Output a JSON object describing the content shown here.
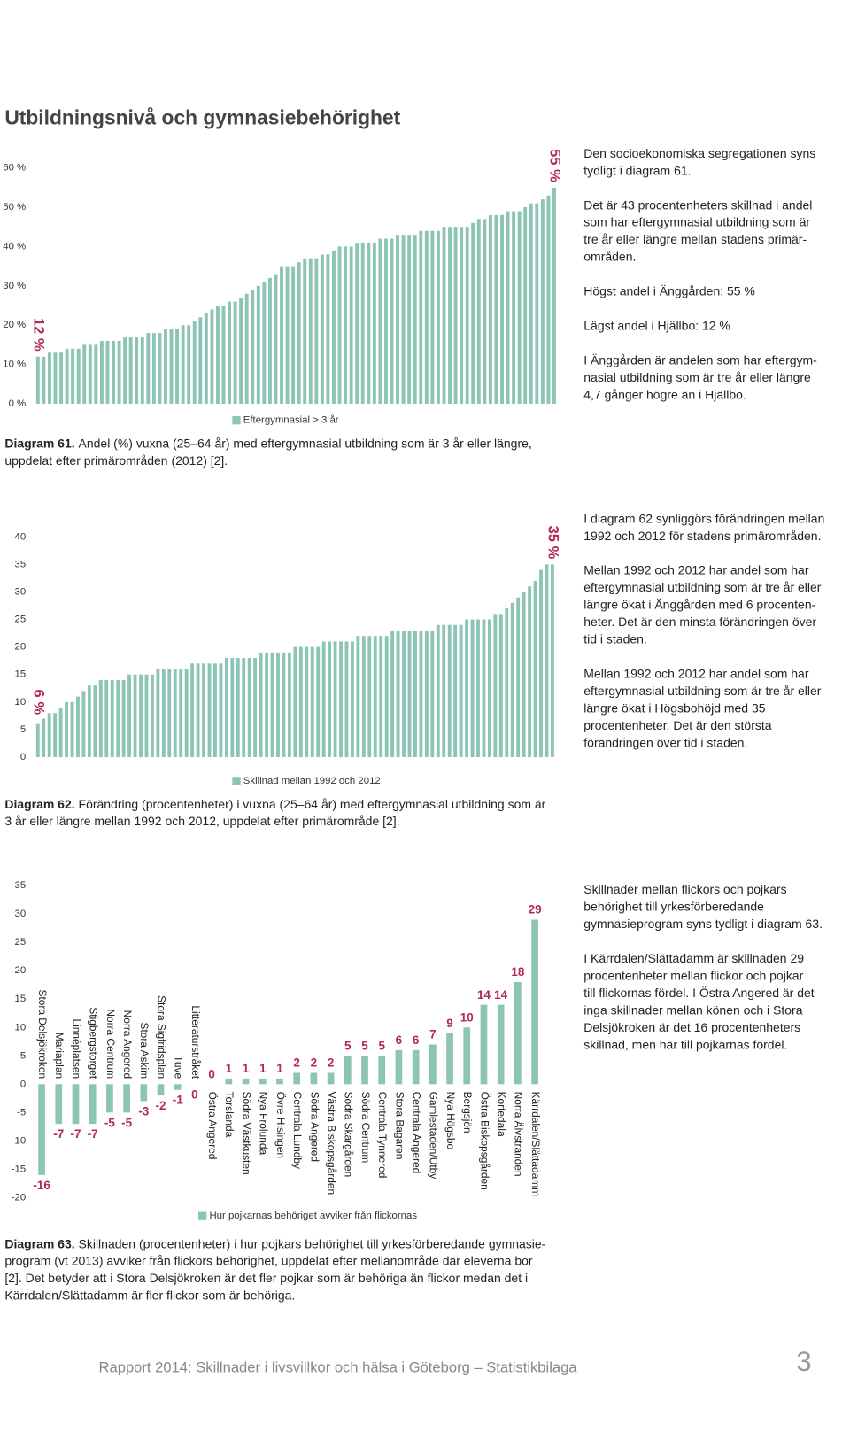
{
  "header": {
    "title": "Utbildningsnivå och gymnasiebehörighet"
  },
  "chart_data": [
    {
      "type": "bar",
      "series": [
        {
          "name": "Eftergymnasial > 3 år",
          "color": "#8cc4b5",
          "values": [
            12,
            12,
            13,
            13,
            13,
            14,
            14,
            14,
            15,
            15,
            15,
            16,
            16,
            16,
            16,
            17,
            17,
            17,
            17,
            18,
            18,
            18,
            19,
            19,
            19,
            20,
            20,
            21,
            22,
            23,
            24,
            25,
            25,
            26,
            26,
            27,
            28,
            29,
            30,
            31,
            32,
            33,
            35,
            35,
            35,
            36,
            37,
            37,
            37,
            38,
            38,
            39,
            40,
            40,
            40,
            41,
            41,
            41,
            41,
            42,
            42,
            42,
            43,
            43,
            43,
            43,
            44,
            44,
            44,
            44,
            45,
            45,
            45,
            45,
            45,
            46,
            47,
            47,
            48,
            48,
            48,
            49,
            49,
            49,
            50,
            51,
            51,
            52,
            53,
            55
          ]
        }
      ],
      "annotations": [
        "12 %",
        "55 %"
      ],
      "ylim": [
        0,
        60
      ],
      "yticks": [
        {
          "value": 0,
          "label": "0 %"
        },
        {
          "value": 10,
          "label": "10 %"
        },
        {
          "value": 20,
          "label": "20 %"
        },
        {
          "value": 30,
          "label": "30 %"
        },
        {
          "value": 40,
          "label": "40 %"
        },
        {
          "value": 50,
          "label": "50 %"
        },
        {
          "value": 60,
          "label": "60 %"
        }
      ],
      "annotation_color": "#b2275c"
    },
    {
      "type": "bar",
      "series": [
        {
          "name": "Skillnad mellan 1992 och 2012",
          "color": "#8cc4b5",
          "values": [
            6,
            7,
            8,
            8,
            9,
            10,
            10,
            11,
            12,
            13,
            13,
            14,
            14,
            14,
            14,
            14,
            15,
            15,
            15,
            15,
            15,
            16,
            16,
            16,
            16,
            16,
            16,
            17,
            17,
            17,
            17,
            17,
            17,
            18,
            18,
            18,
            18,
            18,
            18,
            19,
            19,
            19,
            19,
            19,
            19,
            20,
            20,
            20,
            20,
            20,
            21,
            21,
            21,
            21,
            21,
            21,
            22,
            22,
            22,
            22,
            22,
            22,
            23,
            23,
            23,
            23,
            23,
            23,
            23,
            23,
            24,
            24,
            24,
            24,
            24,
            25,
            25,
            25,
            25,
            25,
            26,
            26,
            27,
            28,
            29,
            30,
            31,
            32,
            34,
            35,
            35
          ]
        }
      ],
      "annotations": [
        "6 %",
        "35 %"
      ],
      "ylim": [
        0,
        40
      ],
      "yticks": [
        0,
        5,
        10,
        15,
        20,
        25,
        30,
        35,
        40
      ],
      "annotation_color": "#b2275c"
    },
    {
      "type": "bar",
      "categories": [
        "Stora Delsjökroken",
        "Mariaplan",
        "Linnéplatsen",
        "Stigbergstorget",
        "Norra Centrum",
        "Norra Angered",
        "Stora Askim",
        "Stora Sigfridsplan",
        "Tuve",
        "Litteraturstråket",
        "Östra Angered",
        "Torslanda",
        "Södra Västkusten",
        "Nya Frölunda",
        "Övre Hisingen",
        "Centrala Lundby",
        "Södra Angered",
        "Västra Biskopsgården",
        "Södra Skärgården",
        "Södra Centrum",
        "Centrala Tynnered",
        "Stora Bagaren",
        "Centrala Angered",
        "Gamlestaden/Utby",
        "Nya Högsbo",
        "Bergsjön",
        "Östra Biskopsgården",
        "Kortedala",
        "Norra Älvstranden",
        "Kärrdalen/Slättadamm"
      ],
      "series": [
        {
          "name": "Hur pojkarnas behöriget avviker från flickornas",
          "color": "#8cc4b5",
          "values": [
            -16,
            -7,
            -7,
            -7,
            -5,
            -5,
            -3,
            -2,
            -1,
            0,
            0,
            1,
            1,
            1,
            1,
            2,
            2,
            2,
            5,
            5,
            5,
            6,
            6,
            7,
            9,
            10,
            14,
            14,
            18,
            29
          ]
        }
      ],
      "ylim": [
        -20,
        35
      ],
      "yticks": [
        -20,
        -15,
        -10,
        -5,
        0,
        5,
        10,
        15,
        20,
        25,
        30,
        35
      ],
      "annotation_color": "#b2275c"
    }
  ],
  "side_texts": [
    [
      [
        "Den socioekonomiska segregationen syns",
        "tydligt i diagram 61."
      ],
      [
        "Det är 43 procentenheters skillnad i andel",
        "som har eftergymnasial utbildning som är",
        "tre år eller längre mellan stadens primär-",
        "områden."
      ],
      [
        "Högst andel i Änggården: 55 %"
      ],
      [
        "Lägst andel i Hjällbo: 12 %"
      ],
      [
        "I Änggården är andelen som har eftergym-",
        "nasial utbildning som är tre år eller längre",
        "4,7 gånger högre än i Hjällbo."
      ]
    ],
    [
      [
        "I diagram 62 synliggörs förändringen mellan",
        "1992 och 2012 för stadens primärområden."
      ],
      [
        "Mellan 1992 och 2012 har andel som har",
        "eftergymnasial utbildning som är tre år eller",
        "längre ökat i Änggården med 6 procenten-",
        "heter. Det är den minsta förändringen över",
        "tid i staden."
      ],
      [
        "Mellan 1992 och 2012 har andel som har",
        "eftergymnasial utbildning som är tre år eller",
        "längre ökat i Högsbohöjd med 35",
        "procentenheter. Det är den största",
        "förändringen över tid i staden."
      ]
    ],
    [
      [
        "Skillnader mellan flickors och pojkars",
        "behörighet till yrkesförberedande",
        "gymnasieprogram syns tydligt i diagram 63."
      ],
      [
        "I Kärrdalen/Slättadamm är skillnaden 29",
        "procentenheter mellan flickor och pojkar",
        "till flickornas fördel. I Östra Angered är det",
        "inga skillnader mellan könen och i Stora",
        "Delsjökroken är det 16 procentenheters",
        "skillnad, men här till pojkarnas fördel."
      ]
    ]
  ],
  "captions": [
    {
      "label": "Diagram 61.",
      "lines": [
        "Andel (%) vuxna (25–64 år) med eftergymnasial utbildning som är 3 år eller längre,",
        "uppdelat efter primärområden (2012) [2]."
      ]
    },
    {
      "label": "Diagram 62.",
      "lines": [
        "Förändring (procentenheter) i vuxna (25–64 år) med eftergymnasial utbildning som är",
        "3 år eller längre mellan 1992 och 2012, uppdelat efter primärområde [2]."
      ]
    },
    {
      "label": "Diagram 63.",
      "lines": [
        "Skillnaden (procentenheter) i hur pojkars behörighet till yrkesförberedande gymnasie-",
        "program (vt 2013) avviker från flickors behörighet, uppdelat efter mellanområde där eleverna bor",
        "[2]. Det betyder att i Stora Delsjökroken är det fler pojkar som är behöriga än flickor medan det i",
        "Kärrdalen/Slättadamm är fler flickor som är behöriga."
      ]
    }
  ],
  "footer": {
    "text": "Rapport 2014: Skillnader i livsvillkor och hälsa i Göteborg – Statistikbilaga",
    "page": "3"
  }
}
